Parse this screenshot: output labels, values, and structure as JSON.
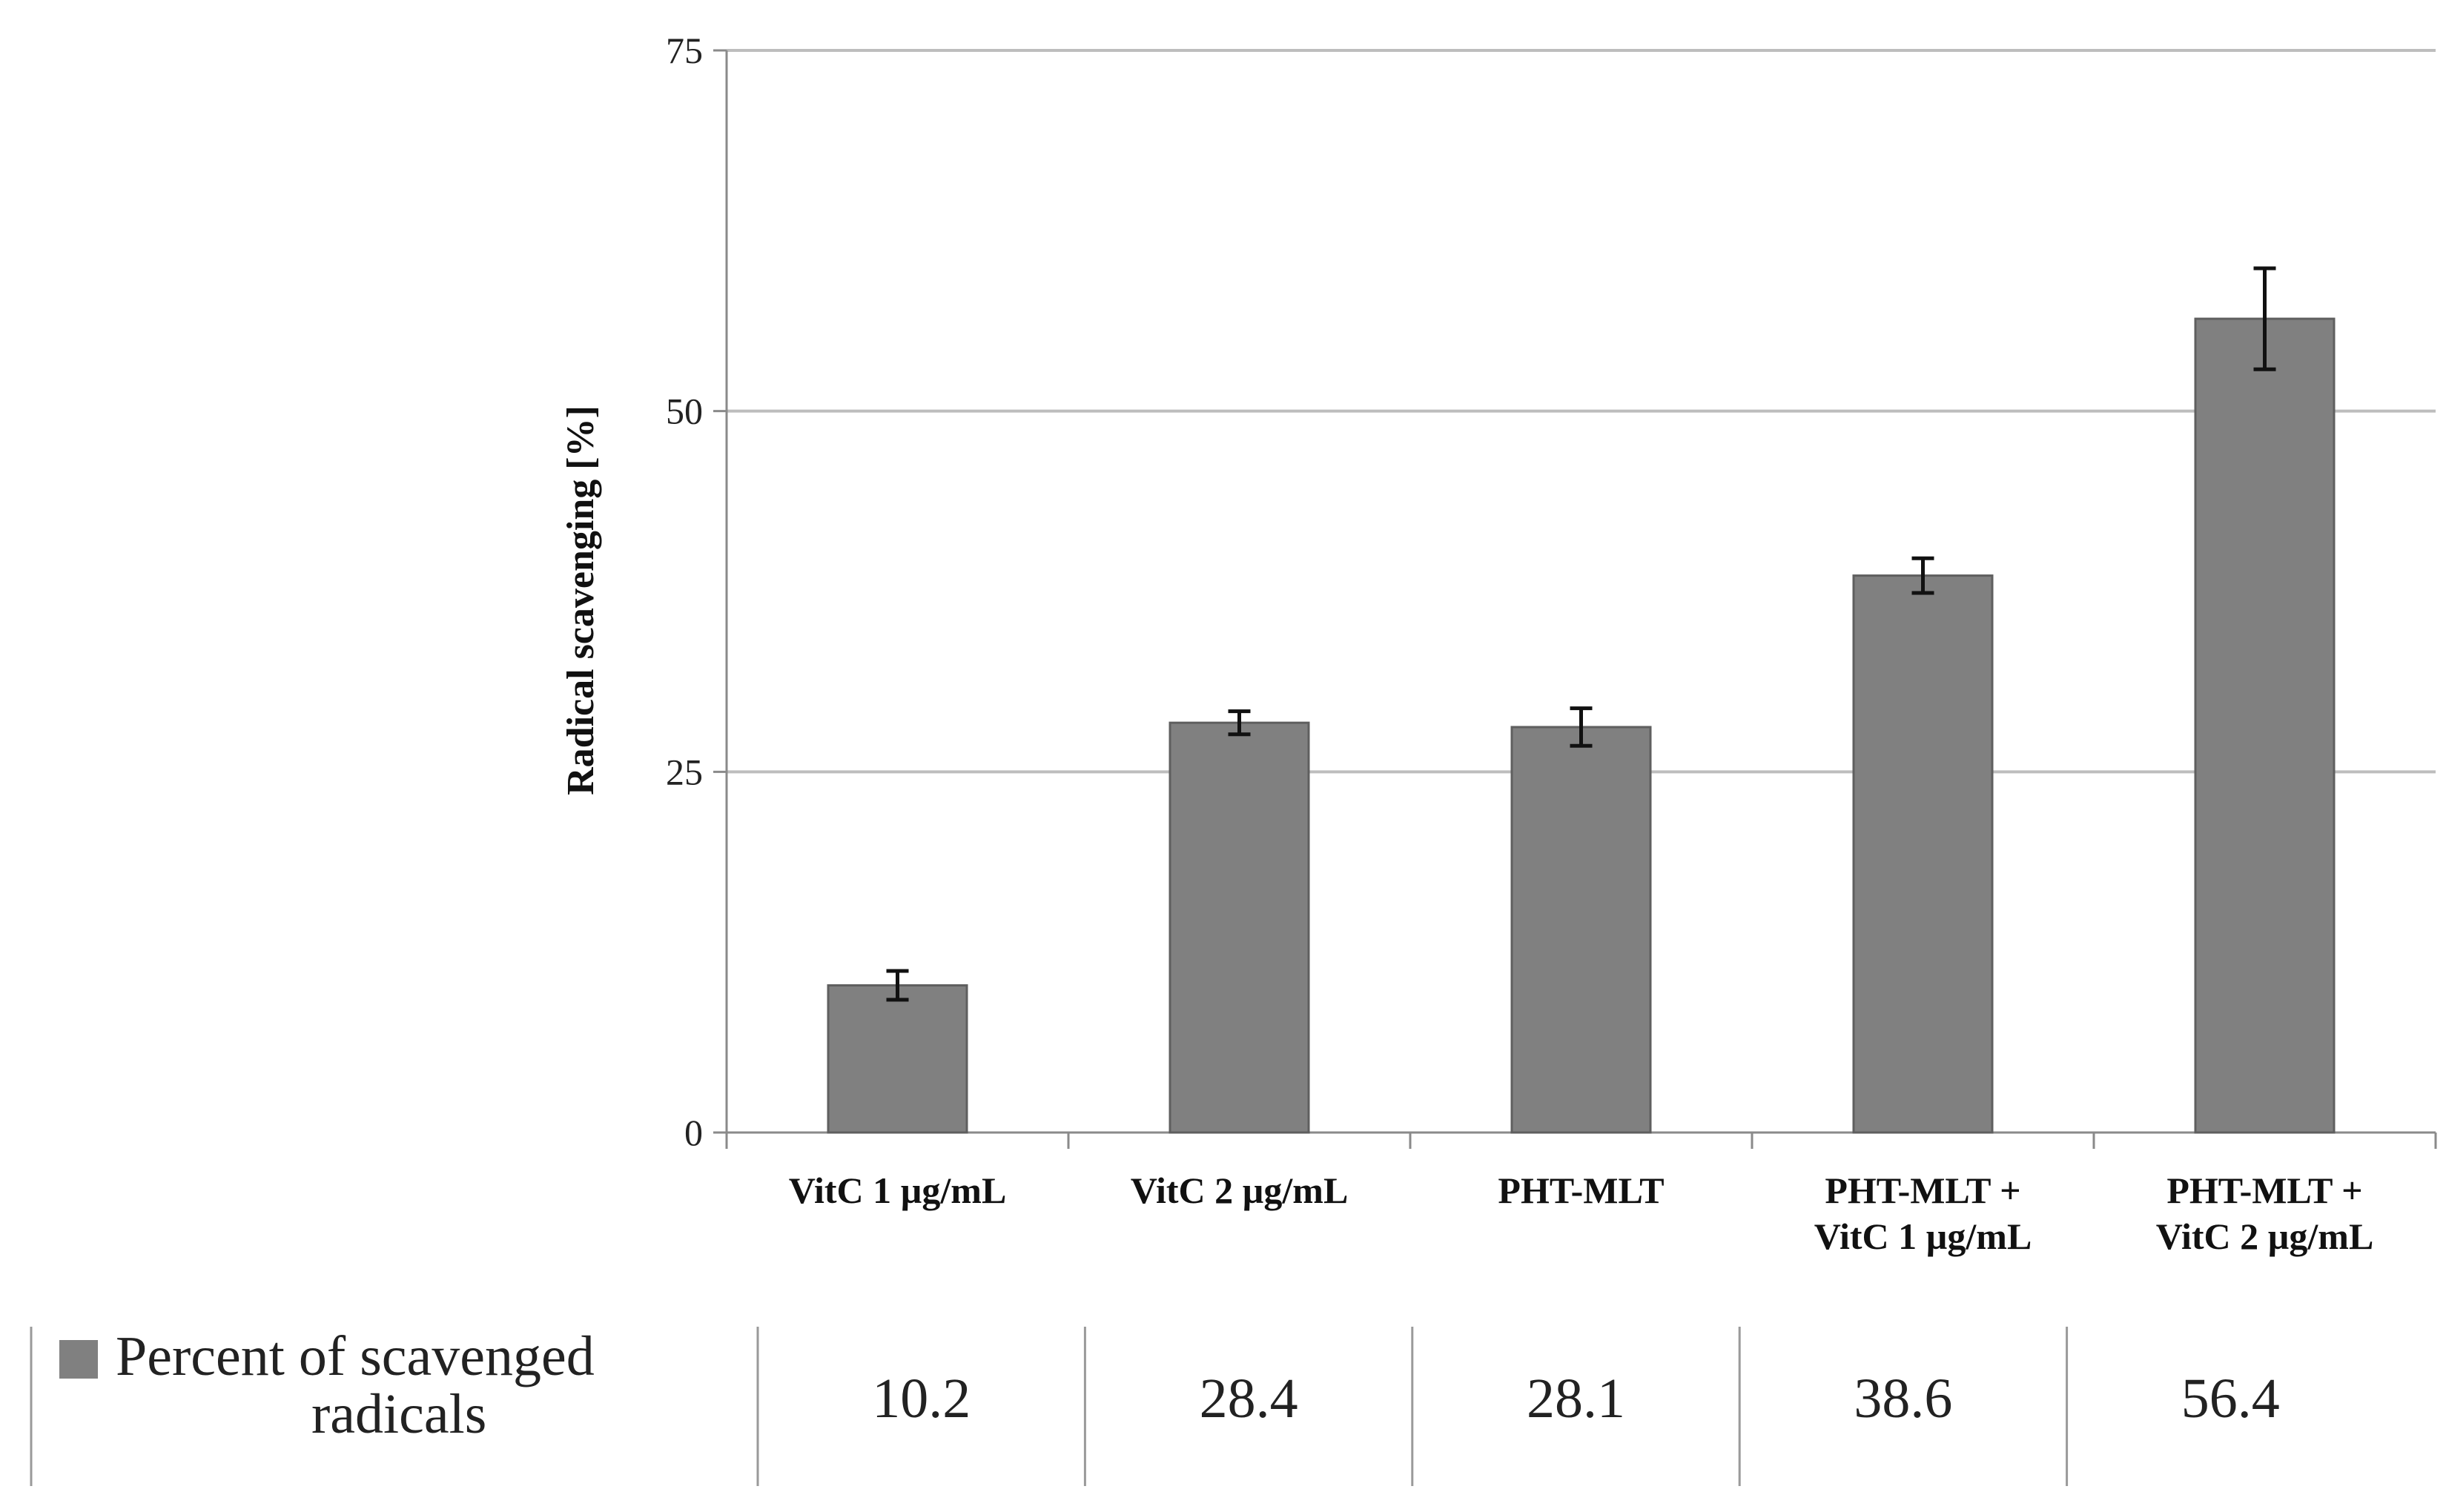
{
  "chart_data": {
    "type": "bar",
    "title": "",
    "xlabel": "",
    "ylabel": "Radical scavenging [%]",
    "ylim": [
      0,
      75
    ],
    "yticks": [
      0,
      25,
      50,
      75
    ],
    "grid": true,
    "categories": [
      [
        "VitC 1 µg/mL"
      ],
      [
        "VitC 2 µg/mL"
      ],
      [
        "PHT-MLT"
      ],
      [
        "PHT-MLT +",
        "VitC 1 µg/mL"
      ],
      [
        "PHT-MLT +",
        "VitC 2 µg/mL"
      ]
    ],
    "series": [
      {
        "name": "Percent of scavenged radicals",
        "legend_lines": [
          "Percent of scavenged",
          "radicals"
        ],
        "values": [
          10.2,
          28.4,
          28.1,
          38.6,
          56.4
        ],
        "errors": [
          1.0,
          0.8,
          1.3,
          1.2,
          3.5
        ],
        "value_labels": [
          "10.2",
          "28.4",
          "28.1",
          "38.6",
          "56.4"
        ],
        "color": "#808080"
      }
    ],
    "colors": {
      "bar_stroke": "#5f5f5f",
      "grid": "#bdbdbd",
      "axis": "#8a8a8a",
      "error_bar": "#111111",
      "table_line": "#9a9a9a"
    }
  }
}
